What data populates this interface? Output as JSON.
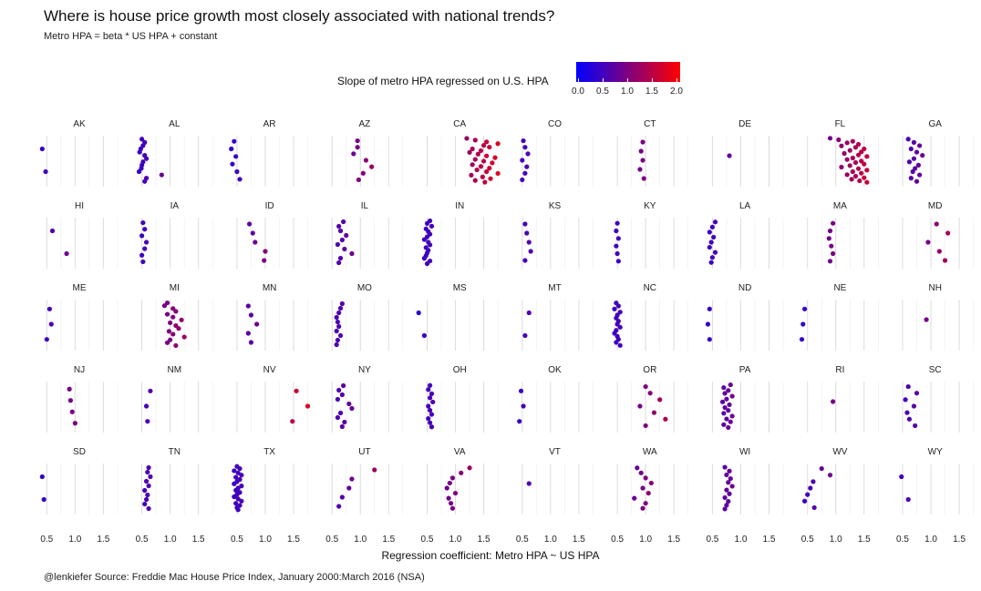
{
  "title": "Where is house price growth most closely associated with national trends?",
  "subtitle": "Metro HPA = beta * US HPA + constant",
  "caption": "@lenkiefer Source: Freddie Mac House Price Index, January 2000:March 2016 (NSA)",
  "legend": {
    "title": "Slope of metro HPA regressed on U.S. HPA",
    "ticks": [
      "0.0",
      "0.5",
      "1.0",
      "1.5",
      "2.0"
    ],
    "low_color": "#0000ff",
    "high_color": "#ff0000"
  },
  "chart_data": {
    "type": "scatter",
    "title": "Where is house price growth most closely associated with national trends?",
    "xlabel": "Regression coefficient: Metro HPA ~ US HPA",
    "ylabel": "",
    "xlim": [
      0.35,
      1.8
    ],
    "color_range": [
      0,
      2
    ],
    "x_ticks": [
      "0.5",
      "1.0",
      "1.5"
    ],
    "facets": [
      {
        "state": "AK",
        "values": [
          0.42,
          0.48
        ]
      },
      {
        "state": "AL",
        "values": [
          0.5,
          0.55,
          0.52,
          0.48,
          0.46,
          0.55,
          0.58,
          0.52,
          0.5,
          0.49,
          0.45,
          0.85,
          0.58,
          0.55
        ]
      },
      {
        "state": "AR",
        "values": [
          0.45,
          0.4,
          0.48,
          0.42,
          0.5,
          0.55
        ]
      },
      {
        "state": "AZ",
        "values": [
          0.95,
          0.95,
          0.88,
          1.1,
          1.2,
          1.05,
          0.97
        ]
      },
      {
        "state": "CA",
        "values": [
          1.2,
          1.35,
          1.55,
          1.75,
          1.5,
          1.6,
          1.3,
          1.45,
          1.25,
          1.4,
          1.55,
          1.7,
          1.35,
          1.5,
          1.65,
          1.3,
          1.45,
          1.6,
          1.38,
          1.55,
          1.75,
          1.28,
          1.48,
          1.62,
          1.35,
          1.52
        ]
      },
      {
        "state": "CO",
        "values": [
          0.52,
          0.55,
          0.6,
          0.5,
          0.58,
          0.55,
          0.5
        ]
      },
      {
        "state": "CT",
        "values": [
          0.95,
          0.92,
          0.95,
          0.9,
          0.97
        ]
      },
      {
        "state": "DE",
        "values": [
          0.8
        ]
      },
      {
        "state": "FL",
        "values": [
          0.9,
          1.05,
          1.3,
          1.2,
          1.4,
          1.1,
          1.35,
          1.5,
          1.25,
          1.45,
          1.15,
          1.4,
          1.55,
          1.3,
          1.2,
          1.45,
          1.35,
          1.5,
          1.25,
          1.1,
          1.4,
          1.55,
          1.3,
          1.45,
          1.2,
          1.35,
          1.5,
          1.28,
          1.42,
          1.55
        ]
      },
      {
        "state": "GA",
        "values": [
          0.6,
          0.7,
          0.8,
          0.65,
          0.75,
          0.85,
          0.7,
          0.62,
          0.78,
          0.72,
          0.68,
          0.8,
          0.65,
          0.75
        ]
      },
      {
        "state": "HI",
        "values": [
          0.6,
          0.85
        ]
      },
      {
        "state": "IA",
        "values": [
          0.52,
          0.55,
          0.5,
          0.58,
          0.55,
          0.5,
          0.52
        ]
      },
      {
        "state": "ID",
        "values": [
          0.72,
          0.78,
          0.82,
          1.0,
          0.98
        ]
      },
      {
        "state": "IL",
        "values": [
          0.7,
          0.62,
          0.65,
          0.75,
          0.68,
          0.6,
          0.72,
          0.85,
          0.65,
          0.62
        ]
      },
      {
        "state": "IN",
        "values": [
          0.55,
          0.5,
          0.58,
          0.48,
          0.52,
          0.55,
          0.5,
          0.45,
          0.52,
          0.55,
          0.48,
          0.52,
          0.5,
          0.48,
          0.45,
          0.55,
          0.5
        ]
      },
      {
        "state": "KS",
        "values": [
          0.55,
          0.58,
          0.62,
          0.65,
          0.55
        ]
      },
      {
        "state": "KY",
        "values": [
          0.5,
          0.48,
          0.52,
          0.48,
          0.5,
          0.52
        ]
      },
      {
        "state": "LA",
        "values": [
          0.55,
          0.5,
          0.45,
          0.52,
          0.48,
          0.45,
          0.55,
          0.5,
          0.48
        ]
      },
      {
        "state": "MA",
        "values": [
          0.95,
          0.9,
          0.88,
          0.92,
          0.95,
          0.9
        ]
      },
      {
        "state": "MD",
        "values": [
          1.1,
          1.3,
          0.95,
          1.15,
          1.25
        ]
      },
      {
        "state": "ME",
        "values": [
          0.55,
          0.58,
          0.5
        ]
      },
      {
        "state": "MI",
        "values": [
          0.95,
          0.9,
          1.05,
          1.1,
          0.95,
          1.05,
          1.2,
          1.0,
          1.1,
          1.15,
          0.98,
          1.05,
          1.25,
          1.0,
          0.95,
          1.1
        ]
      },
      {
        "state": "MN",
        "values": [
          0.7,
          0.75,
          0.85,
          0.7,
          0.75
        ]
      },
      {
        "state": "MO",
        "values": [
          0.68,
          0.65,
          0.62,
          0.58,
          0.6,
          0.62,
          0.58,
          0.65,
          0.6,
          0.58
        ]
      },
      {
        "state": "MS",
        "values": [
          0.35,
          0.45
        ]
      },
      {
        "state": "MT",
        "values": [
          0.62,
          0.55
        ]
      },
      {
        "state": "NC",
        "values": [
          0.48,
          0.52,
          0.45,
          0.55,
          0.5,
          0.48,
          0.52,
          0.5,
          0.55,
          0.48,
          0.45,
          0.5,
          0.52,
          0.48,
          0.55
        ]
      },
      {
        "state": "ND",
        "values": [
          0.45,
          0.42,
          0.45
        ]
      },
      {
        "state": "NE",
        "values": [
          0.45,
          0.42,
          0.4
        ]
      },
      {
        "state": "NH",
        "values": [
          0.92
        ]
      },
      {
        "state": "NJ",
        "values": [
          0.9,
          0.92,
          0.95,
          1.0
        ]
      },
      {
        "state": "NM",
        "values": [
          0.65,
          0.58,
          0.6
        ]
      },
      {
        "state": "NV",
        "values": [
          1.55,
          1.75,
          1.48
        ]
      },
      {
        "state": "NY",
        "values": [
          0.7,
          0.62,
          0.68,
          0.6,
          0.8,
          0.85,
          0.65,
          0.6,
          0.72,
          0.68
        ]
      },
      {
        "state": "OH",
        "values": [
          0.55,
          0.52,
          0.58,
          0.55,
          0.6,
          0.52,
          0.55,
          0.58,
          0.52,
          0.55,
          0.58
        ]
      },
      {
        "state": "OK",
        "values": [
          0.48,
          0.52,
          0.45
        ]
      },
      {
        "state": "OR",
        "values": [
          1.0,
          1.08,
          1.25,
          0.9,
          1.15,
          1.35,
          1.0
        ]
      },
      {
        "state": "PA",
        "values": [
          0.82,
          0.7,
          0.78,
          0.72,
          0.85,
          0.75,
          0.68,
          0.8,
          0.72,
          0.78,
          0.7,
          0.85,
          0.75,
          0.82,
          0.7,
          0.78
        ]
      },
      {
        "state": "RI",
        "values": [
          0.95
        ]
      },
      {
        "state": "SC",
        "values": [
          0.6,
          0.75,
          0.55,
          0.7,
          0.58,
          0.62,
          0.72
        ]
      },
      {
        "state": "SD",
        "values": [
          0.42,
          0.45
        ]
      },
      {
        "state": "TN",
        "values": [
          0.62,
          0.6,
          0.65,
          0.58,
          0.62,
          0.55,
          0.6,
          0.58,
          0.55,
          0.62
        ]
      },
      {
        "state": "TX",
        "values": [
          0.5,
          0.55,
          0.45,
          0.52,
          0.58,
          0.48,
          0.55,
          0.5,
          0.45,
          0.58,
          0.52,
          0.48,
          0.55,
          0.5,
          0.45,
          0.52,
          0.58,
          0.48,
          0.55,
          0.5,
          0.52
        ]
      },
      {
        "state": "UT",
        "values": [
          1.25,
          0.85,
          0.8,
          0.68,
          0.62
        ]
      },
      {
        "state": "VA",
        "values": [
          1.25,
          1.1,
          0.95,
          0.9,
          0.85,
          1.0,
          0.88,
          0.92,
          0.95
        ]
      },
      {
        "state": "VT",
        "values": [
          0.62
        ]
      },
      {
        "state": "WA",
        "values": [
          0.85,
          0.92,
          1.0,
          1.1,
          0.95,
          1.05,
          0.8,
          1.0,
          0.95
        ]
      },
      {
        "state": "WI",
        "values": [
          0.72,
          0.8,
          0.75,
          0.82,
          0.78,
          0.85,
          0.75,
          0.8,
          0.72,
          0.78,
          0.75,
          0.72
        ]
      },
      {
        "state": "WV",
        "values": [
          0.75,
          0.9,
          0.6,
          0.55,
          0.5,
          0.45,
          0.62
        ]
      },
      {
        "state": "WY",
        "values": [
          0.48,
          0.6
        ]
      }
    ]
  }
}
